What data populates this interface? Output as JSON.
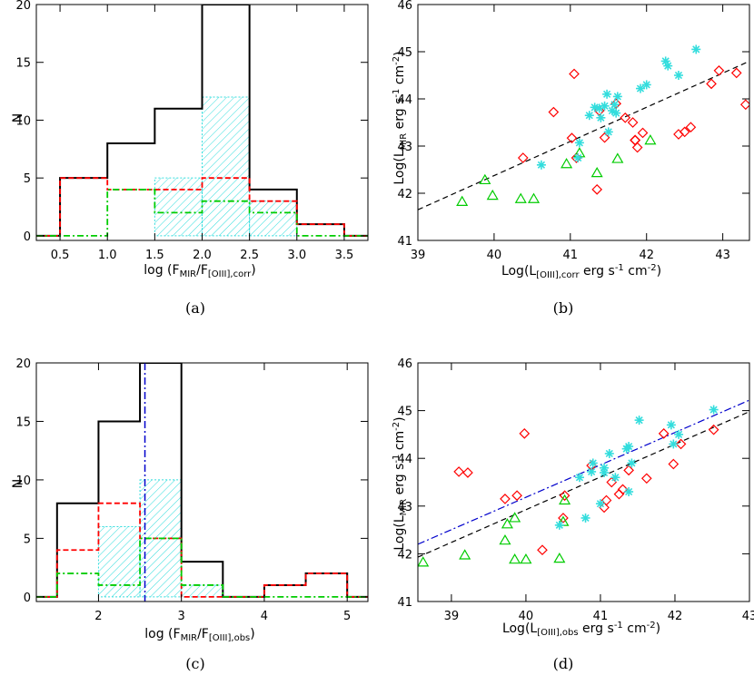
{
  "chart_data": [
    {
      "id": "a",
      "type": "histogram",
      "caption": "(a)",
      "xlabel": "log (F_MIR/F_[OIII],corr)",
      "ylabel": "N",
      "xlim": [
        0.25,
        3.75
      ],
      "ylim": [
        -0.4,
        20
      ],
      "xticks": [
        0.5,
        1.0,
        1.5,
        2.0,
        2.5,
        3.0,
        3.5
      ],
      "xticklabels": [
        "0.5",
        "1.0",
        "1.5",
        "2.0",
        "2.5",
        "3.0",
        "3.5"
      ],
      "yticks": [
        0,
        5,
        10,
        15,
        20
      ],
      "yticklabels": [
        "0",
        "5",
        "10",
        "15",
        "20"
      ],
      "series": [
        {
          "style": "black-solid",
          "color": "#000000",
          "bins": [
            [
              0.5,
              1.0,
              5
            ],
            [
              1.0,
              1.5,
              8
            ],
            [
              1.5,
              2.0,
              11
            ],
            [
              2.0,
              2.5,
              20
            ],
            [
              2.5,
              3.0,
              4
            ],
            [
              3.0,
              3.5,
              1
            ]
          ]
        },
        {
          "style": "red-dashed",
          "color": "#ff0000",
          "bins": [
            [
              0.5,
              1.0,
              5
            ],
            [
              1.0,
              1.5,
              4
            ],
            [
              1.5,
              2.0,
              4
            ],
            [
              2.0,
              2.5,
              5
            ],
            [
              2.5,
              3.0,
              3
            ],
            [
              3.0,
              3.5,
              1
            ]
          ]
        },
        {
          "style": "green-dashdot",
          "color": "#00cc00",
          "bins": [
            [
              1.0,
              1.5,
              4
            ],
            [
              1.5,
              2.0,
              2
            ],
            [
              2.0,
              2.5,
              3
            ],
            [
              2.5,
              3.0,
              2
            ]
          ]
        },
        {
          "style": "cyan-hatched",
          "color": "#33dddd",
          "bins": [
            [
              1.5,
              2.0,
              5
            ],
            [
              2.0,
              2.5,
              12
            ],
            [
              2.5,
              3.0,
              3
            ]
          ]
        }
      ]
    },
    {
      "id": "b",
      "type": "scatter",
      "caption": "(b)",
      "xlabel": "Log(L_[OIII],corr erg s^-1 cm^-2)",
      "ylabel": "Log(L_MIR erg s^-1 cm^-2)",
      "xlim": [
        39,
        43.35
      ],
      "ylim": [
        41,
        46
      ],
      "xticks": [
        39,
        40,
        41,
        42,
        43
      ],
      "xticklabels": [
        "39",
        "40",
        "41",
        "42",
        "43"
      ],
      "yticks": [
        41,
        42,
        43,
        44,
        45,
        46
      ],
      "yticklabels": [
        "41",
        "42",
        "43",
        "44",
        "45",
        "46"
      ],
      "fits": [
        {
          "style": "black-dashed",
          "color": "#000000",
          "x": [
            39,
            43.35
          ],
          "y": [
            41.65,
            44.8
          ]
        }
      ],
      "series": [
        {
          "marker": "diamond",
          "color": "#ff0000",
          "points": [
            [
              40.38,
              42.75
            ],
            [
              40.78,
              43.72
            ],
            [
              41.05,
              44.53
            ],
            [
              41.02,
              43.17
            ],
            [
              41.08,
              42.75
            ],
            [
              41.35,
              42.08
            ],
            [
              41.38,
              43.75
            ],
            [
              41.45,
              43.18
            ],
            [
              41.6,
              43.9
            ],
            [
              41.72,
              43.6
            ],
            [
              41.82,
              43.5
            ],
            [
              41.85,
              43.13
            ],
            [
              41.88,
              42.97
            ],
            [
              41.85,
              43.12
            ],
            [
              41.95,
              43.28
            ],
            [
              42.42,
              43.25
            ],
            [
              42.5,
              43.3
            ],
            [
              42.58,
              43.4
            ],
            [
              42.85,
              44.32
            ],
            [
              42.95,
              44.6
            ],
            [
              43.18,
              44.55
            ],
            [
              43.3,
              43.88
            ]
          ]
        },
        {
          "marker": "triangle",
          "color": "#00cc00",
          "points": [
            [
              39.58,
              41.82
            ],
            [
              39.88,
              42.28
            ],
            [
              39.98,
              41.95
            ],
            [
              40.35,
              41.88
            ],
            [
              40.52,
              41.88
            ],
            [
              40.95,
              42.62
            ],
            [
              41.12,
              42.85
            ],
            [
              41.35,
              42.43
            ],
            [
              41.62,
              42.73
            ],
            [
              42.05,
              43.12
            ]
          ]
        },
        {
          "marker": "asterisk",
          "color": "#33dddd",
          "points": [
            [
              40.62,
              42.6
            ],
            [
              41.1,
              42.75
            ],
            [
              41.12,
              43.07
            ],
            [
              41.25,
              43.65
            ],
            [
              41.32,
              43.82
            ],
            [
              41.4,
              43.6
            ],
            [
              41.45,
              43.85
            ],
            [
              41.48,
              44.1
            ],
            [
              41.5,
              43.3
            ],
            [
              41.55,
              43.75
            ],
            [
              41.6,
              43.7
            ],
            [
              41.62,
              44.05
            ],
            [
              41.92,
              44.22
            ],
            [
              42.0,
              44.3
            ],
            [
              42.25,
              44.8
            ],
            [
              42.28,
              44.7
            ],
            [
              42.42,
              44.5
            ],
            [
              42.65,
              45.05
            ],
            [
              41.38,
              43.8
            ],
            [
              41.58,
              43.88
            ]
          ]
        }
      ]
    },
    {
      "id": "c",
      "type": "histogram",
      "caption": "(c)",
      "xlabel": "log (F_MIR/F_[OIII],obs)",
      "ylabel": "N",
      "xlim": [
        1.25,
        5.25
      ],
      "ylim": [
        -0.4,
        20
      ],
      "xticks": [
        2,
        3,
        4,
        5
      ],
      "xticklabels": [
        "2",
        "3",
        "4",
        "5"
      ],
      "yticks": [
        0,
        5,
        10,
        15,
        20
      ],
      "yticklabels": [
        "0",
        "5",
        "10",
        "15",
        "20"
      ],
      "vlines": [
        {
          "x": 2.56,
          "style": "blue-dashdot",
          "color": "#0000cc"
        }
      ],
      "series": [
        {
          "style": "black-solid",
          "color": "#000000",
          "bins": [
            [
              1.5,
              2.0,
              8
            ],
            [
              2.0,
              2.5,
              15
            ],
            [
              2.5,
              3.0,
              20
            ],
            [
              3.0,
              3.5,
              3
            ],
            [
              4.0,
              4.5,
              1
            ],
            [
              4.5,
              5.0,
              2
            ]
          ]
        },
        {
          "style": "red-dashed",
          "color": "#ff0000",
          "bins": [
            [
              1.5,
              2.0,
              4
            ],
            [
              2.0,
              2.5,
              8
            ],
            [
              2.5,
              3.0,
              5
            ],
            [
              4.0,
              4.5,
              1
            ],
            [
              4.5,
              5.0,
              2
            ]
          ]
        },
        {
          "style": "green-dashdot",
          "color": "#00cc00",
          "bins": [
            [
              1.5,
              2.0,
              2
            ],
            [
              2.0,
              2.5,
              1
            ],
            [
              2.5,
              3.0,
              5
            ],
            [
              3.0,
              3.5,
              1
            ]
          ]
        },
        {
          "style": "cyan-hatched",
          "color": "#33dddd",
          "bins": [
            [
              2.0,
              2.5,
              6
            ],
            [
              2.5,
              3.0,
              10
            ],
            [
              3.0,
              3.5,
              1
            ]
          ]
        }
      ]
    },
    {
      "id": "d",
      "type": "scatter",
      "caption": "(d)",
      "xlabel": "Log(L_[OIII],obs erg s^-1 cm^-2)",
      "ylabel": "Log(L_MIR erg s^-1 cm^-2)",
      "xlim": [
        38.55,
        43
      ],
      "ylim": [
        41,
        46
      ],
      "xticks": [
        39,
        40,
        41,
        42,
        43
      ],
      "xticklabels": [
        "39",
        "40",
        "41",
        "42",
        "43"
      ],
      "yticks": [
        41,
        42,
        43,
        44,
        45,
        46
      ],
      "yticklabels": [
        "41",
        "42",
        "43",
        "44",
        "45",
        "46"
      ],
      "fits": [
        {
          "style": "black-dashed",
          "color": "#000000",
          "x": [
            38.55,
            43
          ],
          "y": [
            41.93,
            44.98
          ]
        },
        {
          "style": "blue-dashdot",
          "color": "#0000cc",
          "x": [
            38.55,
            43
          ],
          "y": [
            42.2,
            45.22
          ]
        }
      ],
      "series": [
        {
          "marker": "diamond",
          "color": "#ff0000",
          "points": [
            [
              39.1,
              43.72
            ],
            [
              39.22,
              43.7
            ],
            [
              39.72,
              43.15
            ],
            [
              39.88,
              43.22
            ],
            [
              39.98,
              44.52
            ],
            [
              40.22,
              42.08
            ],
            [
              40.5,
              42.75
            ],
            [
              40.52,
              43.22
            ],
            [
              40.88,
              43.85
            ],
            [
              41.05,
              42.97
            ],
            [
              41.08,
              43.12
            ],
            [
              41.15,
              43.5
            ],
            [
              41.25,
              43.25
            ],
            [
              41.3,
              43.35
            ],
            [
              41.38,
              43.75
            ],
            [
              41.62,
              43.58
            ],
            [
              41.85,
              44.52
            ],
            [
              41.98,
              43.88
            ],
            [
              42.08,
              44.3
            ],
            [
              42.52,
              44.6
            ]
          ]
        },
        {
          "marker": "triangle",
          "color": "#00cc00",
          "points": [
            [
              38.62,
              41.82
            ],
            [
              39.18,
              41.97
            ],
            [
              39.72,
              42.28
            ],
            [
              39.75,
              42.62
            ],
            [
              39.85,
              42.75
            ],
            [
              39.85,
              41.88
            ],
            [
              40.0,
              41.88
            ],
            [
              40.45,
              41.9
            ],
            [
              40.5,
              42.67
            ],
            [
              40.52,
              43.12
            ]
          ]
        },
        {
          "marker": "asterisk",
          "color": "#33dddd",
          "points": [
            [
              40.45,
              42.6
            ],
            [
              40.72,
              43.6
            ],
            [
              40.8,
              42.75
            ],
            [
              40.88,
              43.72
            ],
            [
              40.9,
              43.9
            ],
            [
              41.05,
              43.8
            ],
            [
              41.05,
              43.7
            ],
            [
              41.12,
              44.1
            ],
            [
              41.2,
              43.6
            ],
            [
              41.35,
              44.2
            ],
            [
              41.38,
              44.25
            ],
            [
              41.38,
              43.3
            ],
            [
              41.52,
              44.8
            ],
            [
              41.42,
              43.9
            ],
            [
              41.95,
              44.7
            ],
            [
              41.98,
              44.3
            ],
            [
              42.05,
              44.5
            ],
            [
              42.52,
              45.02
            ],
            [
              41.0,
              43.05
            ]
          ]
        }
      ]
    }
  ]
}
